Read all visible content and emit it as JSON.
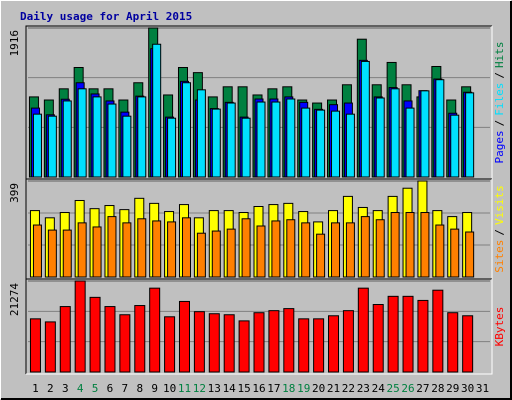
{
  "chart_data": {
    "type": "bar",
    "title": "Daily usage for April 2015",
    "categories": [
      "1",
      "2",
      "3",
      "4",
      "5",
      "6",
      "7",
      "8",
      "9",
      "10",
      "11",
      "12",
      "13",
      "14",
      "15",
      "16",
      "17",
      "18",
      "19",
      "20",
      "21",
      "22",
      "23",
      "24",
      "25",
      "26",
      "27",
      "28",
      "29",
      "30",
      "31"
    ],
    "x_label_colors": [
      "#000000",
      "#000000",
      "#000000",
      "#008040",
      "#008040",
      "#000000",
      "#000000",
      "#000000",
      "#000000",
      "#000000",
      "#008040",
      "#008040",
      "#000000",
      "#000000",
      "#000000",
      "#000000",
      "#000000",
      "#008040",
      "#008040",
      "#000000",
      "#000000",
      "#000000",
      "#000000",
      "#000000",
      "#008040",
      "#008040",
      "#000000",
      "#000000",
      "#000000",
      "#000000",
      "#000000"
    ],
    "legend_separator": "/",
    "panels": [
      {
        "ylim": [
          0,
          1916
        ],
        "yticks": [
          1916
        ],
        "series": [
          {
            "name": "Hits",
            "color": "#008040",
            "values": [
              1030,
              990,
              1134,
              1408,
              1134,
              1134,
              990,
              1212,
              1916,
              1055,
              1408,
              1342,
              1030,
              1160,
              1160,
              1055,
              1134,
              1160,
              990,
              951,
              990,
              1186,
              1772,
              1186,
              1473,
              1186,
              1030,
              1421,
              990,
              1160,
              null
            ]
          },
          {
            "name": "Files",
            "color": "#00e0ff",
            "values": [
              808,
              782,
              978,
              1134,
              1030,
              938,
              782,
              1030,
              1707,
              756,
              1212,
              1121,
              873,
              951,
              756,
              964,
              964,
              1003,
              886,
              860,
              847,
              808,
              1486,
              1016,
              1134,
              886,
              1108,
              1251,
              795,
              1082,
              null
            ]
          },
          {
            "name": "Pages",
            "color": "#0000ff",
            "values": [
              886,
              800,
              1000,
              1212,
              1068,
              978,
              834,
              1040,
              1650,
              770,
              1230,
              990,
              880,
              960,
              770,
              1003,
              1003,
              1030,
              960,
              870,
              930,
              951,
              1500,
              1030,
              1150,
              978,
              1110,
              1260,
              820,
              1090,
              null
            ]
          }
        ]
      },
      {
        "ylim": [
          0,
          399
        ],
        "yticks": [
          399
        ],
        "series": [
          {
            "name": "Visits",
            "color": "#ffff00",
            "values": [
              276,
              246,
              268,
              318,
              284,
              297,
              280,
              327,
              306,
              272,
              301,
              246,
              276,
              276,
              268,
              293,
              301,
              306,
              272,
              229,
              276,
              335,
              289,
              276,
              335,
              369,
              399,
              276,
              251,
              268,
              null
            ]
          },
          {
            "name": "Sites",
            "color": "#ff8000",
            "values": [
              216,
              195,
              195,
              225,
              208,
              251,
              225,
              242,
              233,
              229,
              246,
              182,
              191,
              199,
              242,
              212,
              233,
              238,
              225,
              178,
              225,
              225,
              251,
              238,
              268,
              268,
              268,
              216,
              199,
              187,
              null
            ]
          }
        ]
      },
      {
        "ylim": [
          0,
          21274
        ],
        "yticks": [
          21274
        ],
        "series": [
          {
            "name": "KBytes",
            "color": "#ff0000",
            "values": [
              12430,
              11712,
              15298,
              21274,
              17450,
              15298,
              13386,
              15537,
              19601,
              12908,
              16494,
              14103,
              13625,
              13386,
              11952,
              13864,
              14342,
              14820,
              12430,
              12430,
              13147,
              14342,
              19601,
              15777,
              17689,
              17689,
              16733,
              19123,
              13864,
              13147,
              null
            ]
          }
        ]
      }
    ]
  }
}
